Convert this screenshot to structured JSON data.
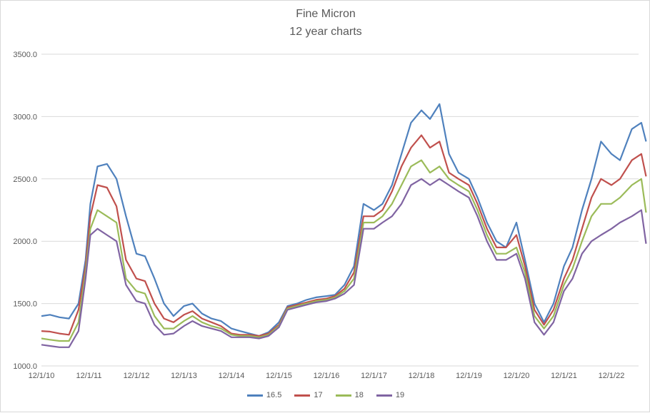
{
  "chart_data": {
    "type": "line",
    "title": "Fine Micron",
    "subtitle": "12 year charts",
    "xlabel": "",
    "ylabel": "",
    "x_ticks": [
      "12/1/10",
      "12/1/11",
      "12/1/12",
      "12/1/13",
      "12/1/14",
      "12/1/15",
      "12/1/16",
      "12/1/17",
      "12/1/18",
      "12/1/19",
      "12/1/20",
      "12/1/21",
      "12/1/22"
    ],
    "y_ticks": [
      "1000.0",
      "1500.0",
      "2000.0",
      "2500.0",
      "3000.0",
      "3500.0"
    ],
    "ylim": [
      1000,
      3500
    ],
    "grid": "horizontal",
    "legend_position": "bottom",
    "x_years": [
      2010.92,
      2011.1,
      2011.3,
      2011.5,
      2011.7,
      2011.85,
      2011.95,
      2012.1,
      2012.3,
      2012.5,
      2012.7,
      2012.92,
      2013.1,
      2013.3,
      2013.5,
      2013.7,
      2013.92,
      2014.1,
      2014.3,
      2014.5,
      2014.7,
      2014.92,
      2015.1,
      2015.3,
      2015.5,
      2015.7,
      2015.92,
      2016.1,
      2016.3,
      2016.5,
      2016.7,
      2016.92,
      2017.1,
      2017.3,
      2017.5,
      2017.7,
      2017.92,
      2018.1,
      2018.3,
      2018.5,
      2018.7,
      2018.92,
      2019.1,
      2019.3,
      2019.5,
      2019.7,
      2019.92,
      2020.1,
      2020.3,
      2020.5,
      2020.7,
      2020.92,
      2021.1,
      2021.3,
      2021.5,
      2021.7,
      2021.92,
      2022.1,
      2022.3,
      2022.5,
      2022.7,
      2022.92,
      2023.1,
      2023.35,
      2023.55,
      2023.65
    ],
    "series": [
      {
        "name": "16.5",
        "color": "#4f81bd",
        "values": [
          1400,
          1410,
          1390,
          1380,
          1500,
          1850,
          2300,
          2600,
          2620,
          2500,
          2200,
          1900,
          1880,
          1700,
          1500,
          1400,
          1480,
          1500,
          1420,
          1380,
          1360,
          1300,
          1280,
          1260,
          1240,
          1270,
          1350,
          1480,
          1500,
          1530,
          1550,
          1560,
          1570,
          1650,
          1800,
          2300,
          2250,
          2300,
          2450,
          2700,
          2950,
          3050,
          2980,
          3100,
          2700,
          2550,
          2500,
          2350,
          2150,
          2000,
          1950,
          2150,
          1850,
          1500,
          1350,
          1500,
          1800,
          1950,
          2250,
          2500,
          2800,
          2700,
          2650,
          2900,
          2950,
          2800
        ]
      },
      {
        "name": "17",
        "color": "#c0504d",
        "values": [
          1280,
          1275,
          1260,
          1250,
          1450,
          1800,
          2200,
          2450,
          2430,
          2280,
          1850,
          1700,
          1680,
          1500,
          1380,
          1350,
          1410,
          1440,
          1380,
          1350,
          1320,
          1260,
          1250,
          1250,
          1240,
          1260,
          1330,
          1470,
          1490,
          1510,
          1530,
          1540,
          1560,
          1620,
          1750,
          2200,
          2200,
          2250,
          2400,
          2600,
          2750,
          2850,
          2750,
          2800,
          2550,
          2500,
          2450,
          2300,
          2100,
          1950,
          1950,
          2050,
          1800,
          1450,
          1330,
          1450,
          1700,
          1850,
          2100,
          2350,
          2500,
          2450,
          2500,
          2650,
          2700,
          2520
        ]
      },
      {
        "name": "18",
        "color": "#9bbb59",
        "values": [
          1220,
          1210,
          1200,
          1200,
          1350,
          1750,
          2100,
          2250,
          2200,
          2150,
          1700,
          1600,
          1580,
          1400,
          1300,
          1300,
          1360,
          1400,
          1350,
          1320,
          1300,
          1250,
          1240,
          1240,
          1230,
          1250,
          1320,
          1460,
          1480,
          1500,
          1520,
          1530,
          1550,
          1600,
          1700,
          2150,
          2150,
          2200,
          2300,
          2450,
          2600,
          2650,
          2550,
          2600,
          2500,
          2450,
          2400,
          2250,
          2050,
          1900,
          1900,
          1950,
          1750,
          1400,
          1300,
          1400,
          1650,
          1780,
          2000,
          2200,
          2300,
          2300,
          2350,
          2450,
          2500,
          2230
        ]
      },
      {
        "name": "19",
        "color": "#8064a2",
        "values": [
          1170,
          1160,
          1150,
          1150,
          1280,
          1700,
          2050,
          2100,
          2050,
          2000,
          1650,
          1520,
          1500,
          1330,
          1250,
          1260,
          1320,
          1360,
          1320,
          1300,
          1280,
          1230,
          1230,
          1230,
          1220,
          1240,
          1310,
          1450,
          1470,
          1490,
          1510,
          1520,
          1540,
          1580,
          1650,
          2100,
          2100,
          2150,
          2200,
          2300,
          2450,
          2500,
          2450,
          2500,
          2450,
          2400,
          2350,
          2200,
          2000,
          1850,
          1850,
          1900,
          1700,
          1350,
          1250,
          1350,
          1600,
          1700,
          1900,
          2000,
          2050,
          2100,
          2150,
          2200,
          2250,
          1980
        ]
      }
    ]
  }
}
